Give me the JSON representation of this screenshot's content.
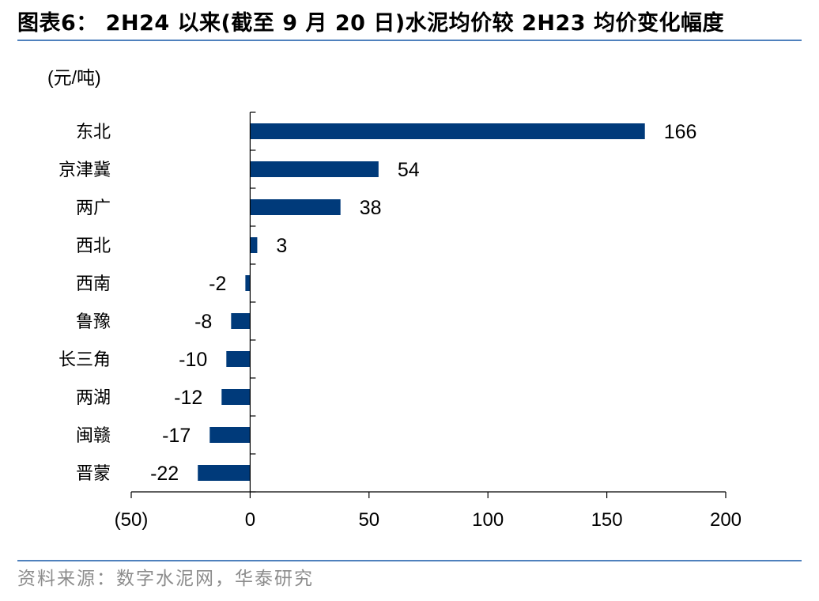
{
  "header": {
    "title": "图表6： 2H24 以来(截至 9 月 20 日)水泥均价较 2H23 均价变化幅度"
  },
  "footer": {
    "source": "资料来源：数字水泥网，华泰研究"
  },
  "colors": {
    "bar": "#003a7a",
    "rule": "#4f81bd",
    "source_text": "#8c8c8c"
  },
  "chart_data": {
    "type": "bar",
    "orientation": "horizontal",
    "unit_label": "(元/吨)",
    "categories": [
      "东北",
      "京津冀",
      "两广",
      "西北",
      "西南",
      "鲁豫",
      "长三角",
      "两湖",
      "闽赣",
      "晋蒙"
    ],
    "values": [
      166,
      54,
      38,
      3,
      -2,
      -8,
      -10,
      -12,
      -17,
      -22
    ],
    "value_labels": [
      "166",
      "54",
      "38",
      "3",
      "-2",
      "-8",
      "-10",
      "-12",
      "-17",
      "-22"
    ],
    "xlim": [
      -50,
      200
    ],
    "xticks": [
      -50,
      0,
      50,
      100,
      150,
      200
    ],
    "xtick_labels": [
      "(50)",
      "0",
      "50",
      "100",
      "150",
      "200"
    ],
    "grid": false,
    "legend": "none"
  }
}
